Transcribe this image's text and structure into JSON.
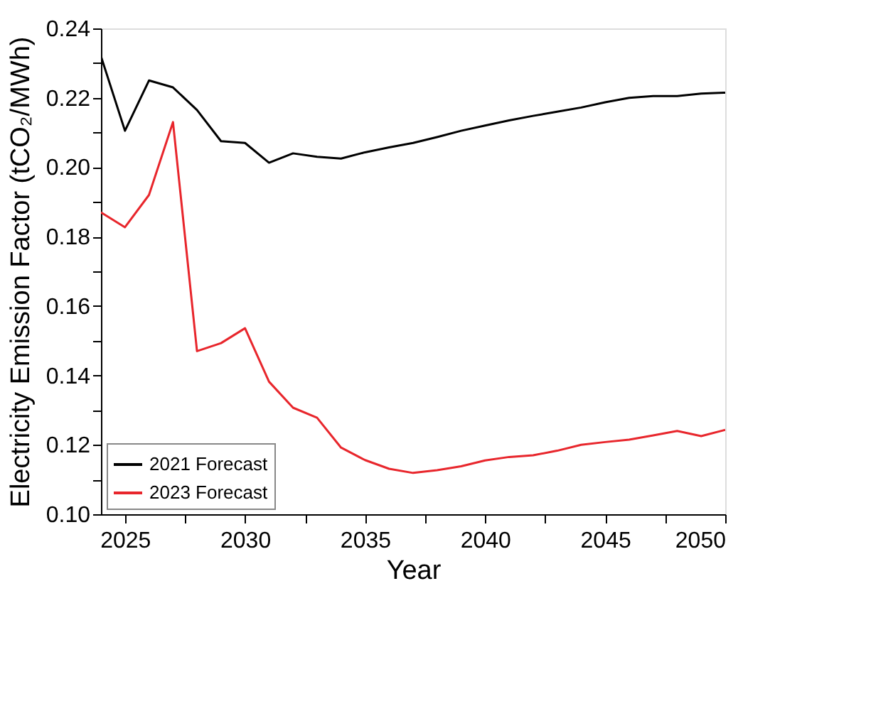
{
  "chart_data": {
    "type": "line",
    "xlabel": "Year",
    "ylabel": "Electricity Emission Factor (tCO₂/MWh)",
    "x": [
      2024,
      2025,
      2026,
      2027,
      2028,
      2029,
      2030,
      2031,
      2032,
      2033,
      2034,
      2035,
      2036,
      2037,
      2038,
      2039,
      2040,
      2041,
      2042,
      2043,
      2044,
      2045,
      2046,
      2047,
      2048,
      2049,
      2050
    ],
    "series": [
      {
        "name": "2021 Forecast",
        "color": "#000000",
        "values": [
          0.232,
          0.2105,
          0.225,
          0.223,
          0.2165,
          0.2075,
          0.207,
          0.2013,
          0.204,
          0.203,
          0.2025,
          0.2043,
          0.2057,
          0.207,
          0.2087,
          0.2105,
          0.212,
          0.2135,
          0.2148,
          0.216,
          0.2172,
          0.2187,
          0.22,
          0.2205,
          0.2205,
          0.2212,
          0.2215
        ]
      },
      {
        "name": "2023 Forecast",
        "color": "#e8262c",
        "values": [
          0.187,
          0.1827,
          0.192,
          0.213,
          0.147,
          0.1493,
          0.1536,
          0.1382,
          0.1307,
          0.1278,
          0.1192,
          0.1156,
          0.1131,
          0.1119,
          0.1127,
          0.1138,
          0.1155,
          0.1165,
          0.117,
          0.1183,
          0.12,
          0.1208,
          0.1215,
          0.1227,
          0.124,
          0.1225,
          0.1243
        ]
      }
    ],
    "xlim": [
      2024,
      2050
    ],
    "xticks": [
      {
        "value": 2027.5,
        "label": null
      },
      2025,
      {
        "value": 2032.5,
        "label": null
      },
      2030,
      {
        "value": 2037.5,
        "label": null
      },
      2035,
      {
        "value": 2042.5,
        "label": null
      },
      2040,
      {
        "value": 2047.5,
        "label": null
      },
      2045,
      2050
    ],
    "ylim": [
      0.1,
      0.24
    ],
    "yticks": [
      {
        "value": 0.1,
        "label": "0.10"
      },
      {
        "value": 0.11,
        "label": null
      },
      {
        "value": 0.12,
        "label": "0.12"
      },
      {
        "value": 0.13,
        "label": null
      },
      {
        "value": 0.14,
        "label": "0.14"
      },
      {
        "value": 0.15,
        "label": null
      },
      {
        "value": 0.16,
        "label": "0.16"
      },
      {
        "value": 0.17,
        "label": null
      },
      {
        "value": 0.18,
        "label": "0.18"
      },
      {
        "value": 0.19,
        "label": null
      },
      {
        "value": 0.2,
        "label": "0.20"
      },
      {
        "value": 0.21,
        "label": null
      },
      {
        "value": 0.22,
        "label": "0.22"
      },
      {
        "value": 0.23,
        "label": null
      },
      {
        "value": 0.24,
        "label": "0.24"
      }
    ],
    "grid": false,
    "legend": "bottom left",
    "marker": "none",
    "line_style": "solid"
  }
}
